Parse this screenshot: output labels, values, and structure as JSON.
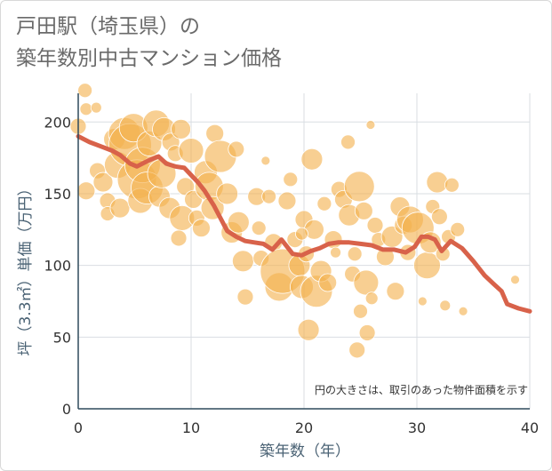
{
  "chart_data": {
    "type": "scatter",
    "title": [
      "戸田駅（埼玉県）の",
      "築年数別中古マンション価格"
    ],
    "xlabel": "築年数（年）",
    "ylabel": "坪（3.3㎡）単価（万円）",
    "xlim": [
      0,
      40
    ],
    "ylim": [
      0,
      220
    ],
    "xticks": [
      0,
      10,
      20,
      30,
      40
    ],
    "yticks": [
      0,
      50,
      100,
      150,
      200
    ],
    "grid": true,
    "note": "円の大きさは、取引のあった物件面積を示す",
    "colors": {
      "bubble": "#f3b24f",
      "line": "#d8624a",
      "grid": "#d9dde2",
      "axis": "#2f4a5c"
    },
    "series": [
      {
        "kind": "bubbles",
        "points": [
          [
            0,
            197,
            9
          ],
          [
            0.6,
            222,
            8
          ],
          [
            0.7,
            209,
            7
          ],
          [
            1.6,
            210,
            6
          ],
          [
            0.7,
            152,
            10
          ],
          [
            1.7,
            166,
            9
          ],
          [
            2.2,
            158,
            11
          ],
          [
            2.6,
            145,
            9
          ],
          [
            2.6,
            136,
            8
          ],
          [
            3.2,
            188,
            12
          ],
          [
            3.5,
            170,
            15
          ],
          [
            3.7,
            140,
            11
          ],
          [
            4.1,
            192,
            18
          ],
          [
            4.6,
            184,
            24
          ],
          [
            4.9,
            196,
            16
          ],
          [
            5.2,
            160,
            22
          ],
          [
            5.5,
            145,
            14
          ],
          [
            5.7,
            170,
            20
          ],
          [
            6.1,
            154,
            18
          ],
          [
            6.3,
            185,
            14
          ],
          [
            6.9,
            199,
            15
          ],
          [
            7.2,
            148,
            12
          ],
          [
            7.4,
            164,
            16
          ],
          [
            7.6,
            195,
            13
          ],
          [
            8.1,
            140,
            12
          ],
          [
            8.2,
            186,
            10
          ],
          [
            8.6,
            178,
            9
          ],
          [
            9.1,
            195,
            11
          ],
          [
            9.2,
            133,
            14
          ],
          [
            9.5,
            155,
            10
          ],
          [
            8.9,
            119,
            9
          ],
          [
            10.0,
            180,
            14
          ],
          [
            10.2,
            146,
            10
          ],
          [
            10.5,
            133,
            9
          ],
          [
            10.9,
            126,
            10
          ],
          [
            11.3,
            165,
            13
          ],
          [
            11.6,
            155,
            16
          ],
          [
            11.9,
            140,
            13
          ],
          [
            12.1,
            192,
            10
          ],
          [
            12.6,
            176,
            18
          ],
          [
            13.2,
            150,
            12
          ],
          [
            13.6,
            123,
            12
          ],
          [
            14.0,
            181,
            9
          ],
          [
            14.2,
            130,
            12
          ],
          [
            14.6,
            103,
            12
          ],
          [
            14.8,
            78,
            9
          ],
          [
            15.8,
            148,
            10
          ],
          [
            16.0,
            126,
            8
          ],
          [
            16.2,
            105,
            9
          ],
          [
            16.6,
            173,
            5
          ],
          [
            16.9,
            148,
            8
          ],
          [
            17.3,
            116,
            10
          ],
          [
            17.8,
            85,
            16
          ],
          [
            18.1,
            96,
            25
          ],
          [
            18.5,
            145,
            10
          ],
          [
            18.8,
            160,
            8
          ],
          [
            19.2,
            118,
            9
          ],
          [
            19.6,
            100,
            12
          ],
          [
            19.8,
            85,
            13
          ],
          [
            20.0,
            132,
            10
          ],
          [
            20.2,
            108,
            9
          ],
          [
            20.4,
            55,
            12
          ],
          [
            20.7,
            174,
            12
          ],
          [
            20.9,
            125,
            11
          ],
          [
            21.1,
            82,
            18
          ],
          [
            21.5,
            96,
            12
          ],
          [
            21.8,
            143,
            8
          ],
          [
            22.1,
            88,
            10
          ],
          [
            22.6,
            118,
            10
          ],
          [
            23.1,
            153,
            9
          ],
          [
            23.5,
            146,
            10
          ],
          [
            23.9,
            186,
            8
          ],
          [
            24.0,
            135,
            12
          ],
          [
            24.3,
            94,
            9
          ],
          [
            24.5,
            108,
            8
          ],
          [
            24.9,
            155,
            17
          ],
          [
            25.0,
            68,
            8
          ],
          [
            25.3,
            138,
            10
          ],
          [
            25.5,
            88,
            14
          ],
          [
            25.6,
            53,
            9
          ],
          [
            25.9,
            198,
            5
          ],
          [
            26.3,
            128,
            9
          ],
          [
            26.6,
            118,
            8
          ],
          [
            27.2,
            106,
            10
          ],
          [
            27.8,
            120,
            12
          ],
          [
            28.1,
            82,
            10
          ],
          [
            28.5,
            141,
            11
          ],
          [
            28.8,
            128,
            10
          ],
          [
            29.2,
            109,
            9
          ],
          [
            29.4,
            132,
            15
          ],
          [
            30.1,
            126,
            18
          ],
          [
            30.5,
            75,
            5
          ],
          [
            30.9,
            100,
            15
          ],
          [
            31.2,
            116,
            12
          ],
          [
            31.4,
            141,
            8
          ],
          [
            31.8,
            158,
            12
          ],
          [
            32.0,
            134,
            9
          ],
          [
            32.3,
            108,
            8
          ],
          [
            32.5,
            72,
            6
          ],
          [
            32.8,
            120,
            8
          ],
          [
            33.1,
            156,
            8
          ],
          [
            33.6,
            125,
            8
          ],
          [
            34.1,
            68,
            5
          ],
          [
            38.7,
            90,
            5
          ],
          [
            19.8,
            122,
            7
          ],
          [
            22.8,
            109,
            6
          ],
          [
            24.7,
            41,
            9
          ],
          [
            26.0,
            77,
            7
          ]
        ]
      },
      {
        "kind": "line",
        "points": [
          [
            0,
            190
          ],
          [
            1,
            186
          ],
          [
            2,
            183
          ],
          [
            3,
            180
          ],
          [
            3.7,
            177
          ],
          [
            4.6,
            171
          ],
          [
            5.2,
            169
          ],
          [
            6.2,
            173
          ],
          [
            7.1,
            176
          ],
          [
            7.8,
            171
          ],
          [
            8.6,
            169
          ],
          [
            9.4,
            168
          ],
          [
            10.0,
            163
          ],
          [
            10.6,
            158
          ],
          [
            11.2,
            152
          ],
          [
            12.0,
            142
          ],
          [
            12.6,
            133
          ],
          [
            13.2,
            124
          ],
          [
            14.0,
            120
          ],
          [
            14.8,
            117
          ],
          [
            15.6,
            116
          ],
          [
            16.4,
            115
          ],
          [
            17.2,
            111
          ],
          [
            18.0,
            118
          ],
          [
            19.0,
            108
          ],
          [
            19.8,
            107
          ],
          [
            20.6,
            110
          ],
          [
            21.4,
            112
          ],
          [
            22.2,
            115
          ],
          [
            23.0,
            116
          ],
          [
            24.0,
            116
          ],
          [
            25.0,
            115
          ],
          [
            26.0,
            114
          ],
          [
            27.0,
            111
          ],
          [
            28.0,
            111
          ],
          [
            29.0,
            109
          ],
          [
            29.8,
            113
          ],
          [
            30.4,
            120
          ],
          [
            31.0,
            120
          ],
          [
            31.6,
            118
          ],
          [
            32.2,
            110
          ],
          [
            33.0,
            117
          ],
          [
            34.0,
            112
          ],
          [
            35.0,
            103
          ],
          [
            36.0,
            93
          ],
          [
            36.8,
            87
          ],
          [
            37.5,
            82
          ],
          [
            38.0,
            73
          ],
          [
            39.0,
            70
          ],
          [
            40.0,
            68
          ]
        ]
      }
    ]
  }
}
